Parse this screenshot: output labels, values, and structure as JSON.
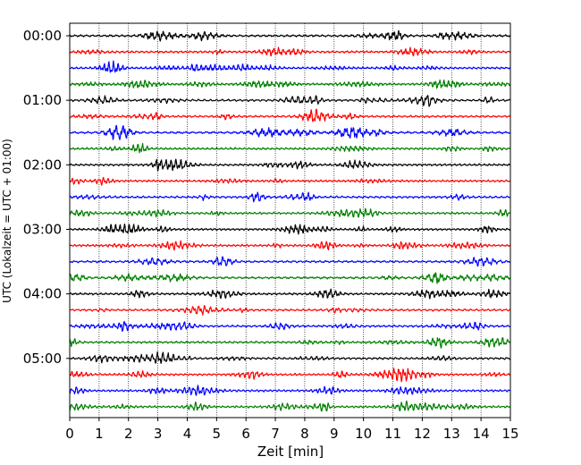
{
  "chart_data": {
    "type": "line",
    "title": "",
    "xlabel": "Zeit  [min]",
    "ylabel": "UTC (Lokalzeit = UTC + 01:00)",
    "xlim": [
      0,
      15
    ],
    "x_ticks": [
      "0",
      "1",
      "2",
      "3",
      "4",
      "5",
      "6",
      "7",
      "8",
      "9",
      "10",
      "11",
      "12",
      "13",
      "14",
      "15"
    ],
    "y_tick_labels": [
      "00:00",
      "01:00",
      "02:00",
      "03:00",
      "04:00",
      "05:00"
    ],
    "traces_per_hour": 4,
    "trace_count": 24,
    "trace_colors": [
      "#000000",
      "#ff0000",
      "#0000ff",
      "#008000"
    ],
    "grid": "vertical dotted at each minute",
    "note": "Helicorder seismogram, each trace = 15 min of ground motion"
  }
}
